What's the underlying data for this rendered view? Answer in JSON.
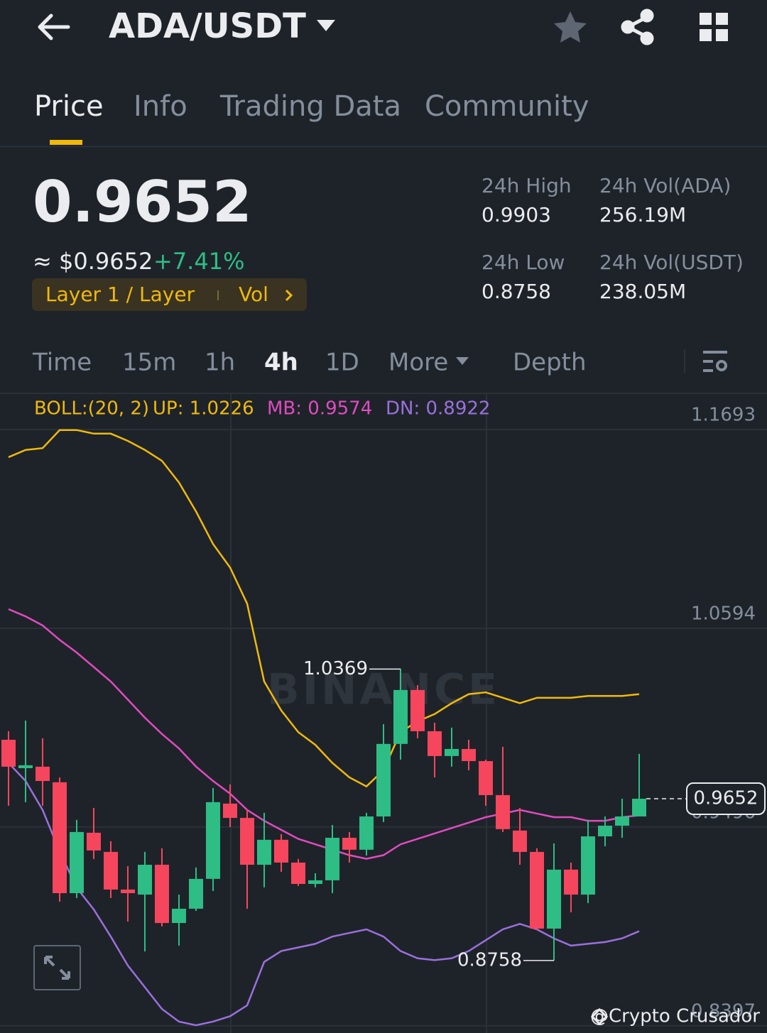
{
  "header": {
    "pair": "ADA/USDT"
  },
  "tabs": [
    "Price",
    "Info",
    "Trading Data",
    "Community"
  ],
  "ticker": {
    "price": "0.9652",
    "fiat": "≈ $0.9652",
    "change": "+7.41%",
    "tag": "Layer 1 / Layer",
    "tag_link": "Vol"
  },
  "stats": [
    {
      "label": "24h High",
      "value": "0.9903"
    },
    {
      "label": "24h Vol(ADA)",
      "value": "256.19M"
    },
    {
      "label": "24h Low",
      "value": "0.8758"
    },
    {
      "label": "24h Vol(USDT)",
      "value": "238.05M"
    }
  ],
  "intervals": [
    "Time",
    "15m",
    "1h",
    "4h",
    "1D",
    "More",
    "Depth"
  ],
  "chart_data": {
    "type": "candlestick",
    "indicator": {
      "title": "BOLL:(20, 2)",
      "items": [
        "UP: 1.0226",
        "MB: 0.9574",
        "DN: 0.8922"
      ]
    },
    "watermark": "BINANCE",
    "up_color": "#2ebd85",
    "down_color": "#f6465d",
    "open": [
      0.9978,
      0.9821,
      0.9829,
      0.9743,
      0.913,
      0.9464,
      0.9358,
      0.915,
      0.9122,
      0.9287,
      0.8965,
      0.9044,
      0.9209,
      0.9625,
      0.9546,
      0.9287,
      0.9425,
      0.9299,
      0.9181,
      0.9201,
      0.9436,
      0.937,
      0.9554,
      0.9955,
      1.0253,
      1.0025,
      0.9888,
      0.9927,
      0.986,
      0.9672,
      0.9476,
      0.9358,
      0.8934,
      0.926,
      0.9122,
      0.9444,
      0.9503,
      0.9554
    ],
    "high": [
      1.0025,
      1.0084,
      0.9986,
      0.977,
      0.9535,
      0.9601,
      0.9417,
      0.9279,
      0.9358,
      0.9378,
      0.9122,
      0.9272,
      0.9711,
      0.9731,
      0.9593,
      0.9574,
      0.9456,
      0.9319,
      0.924,
      0.9507,
      0.9468,
      0.9574,
      1.0064,
      1.0369,
      1.028,
      1.0072,
      1.0045,
      0.9978,
      0.9868,
      0.9939,
      0.9601,
      0.9378,
      0.9405,
      0.9299,
      0.9535,
      0.9554,
      0.9652,
      0.99
    ],
    "low": [
      0.9613,
      0.9633,
      0.9613,
      0.9083,
      0.9103,
      0.9319,
      0.9103,
      0.8973,
      0.8808,
      0.8946,
      0.884,
      0.9032,
      0.9142,
      0.9495,
      0.9044,
      0.9162,
      0.9248,
      0.917,
      0.9162,
      0.913,
      0.9299,
      0.9338,
      0.9523,
      0.9868,
      0.9986,
      0.977,
      0.9829,
      0.9809,
      0.9613,
      0.9468,
      0.9287,
      0.8926,
      0.8758,
      0.9024,
      0.9075,
      0.9389,
      0.9436,
      0.9554
    ],
    "close": [
      0.9829,
      0.9837,
      0.975,
      0.913,
      0.9468,
      0.9366,
      0.915,
      0.913,
      0.9287,
      0.8965,
      0.9044,
      0.9209,
      0.9633,
      0.9546,
      0.9287,
      0.9425,
      0.9299,
      0.9181,
      0.9201,
      0.9436,
      0.937,
      0.9554,
      0.9955,
      1.0253,
      1.0025,
      0.9888,
      0.9927,
      0.986,
      0.9672,
      0.9484,
      0.9358,
      0.8934,
      0.926,
      0.9122,
      0.9444,
      0.9503,
      0.9554,
      0.9652
    ],
    "series": [
      {
        "color": "#f0b90b",
        "values": [
          1.154,
          1.158,
          1.159,
          1.169,
          1.169,
          1.167,
          1.167,
          1.163,
          1.158,
          1.152,
          1.14,
          1.124,
          1.106,
          1.093,
          1.073,
          1.03,
          1.014,
          1.002,
          0.995,
          0.985,
          0.977,
          0.972,
          0.981,
          1.002,
          1.008,
          1.012,
          1.018,
          1.023,
          1.024,
          1.021,
          1.018,
          1.021,
          1.021,
          1.021,
          1.022,
          1.022,
          1.022,
          1.023
        ]
      },
      {
        "color": "#e04bc0",
        "values": [
          1.07,
          1.066,
          1.061,
          1.053,
          1.046,
          1.038,
          1.03,
          1.02,
          1.01,
          1.001,
          0.993,
          0.983,
          0.975,
          0.968,
          0.959,
          0.953,
          0.948,
          0.943,
          0.94,
          0.937,
          0.934,
          0.932,
          0.934,
          0.94,
          0.943,
          0.946,
          0.949,
          0.952,
          0.955,
          0.957,
          0.959,
          0.957,
          0.955,
          0.955,
          0.953,
          0.953,
          0.955,
          0.956
        ]
      },
      {
        "color": "#9a70dc",
        "values": [
          0.985,
          0.975,
          0.959,
          0.936,
          0.916,
          0.904,
          0.889,
          0.873,
          0.861,
          0.849,
          0.842,
          0.84,
          0.842,
          0.845,
          0.851,
          0.875,
          0.881,
          0.883,
          0.885,
          0.889,
          0.891,
          0.893,
          0.889,
          0.881,
          0.877,
          0.876,
          0.877,
          0.881,
          0.887,
          0.893,
          0.896,
          0.893,
          0.888,
          0.884,
          0.885,
          0.886,
          0.888,
          0.892
        ]
      }
    ],
    "ylim": [
      0.8357,
      1.1889
    ],
    "yticks": [
      1.1693,
      1.0594,
      0.9496,
      0.8397
    ],
    "grid": true,
    "high_index": 23,
    "low_index": 32
  },
  "credit": "@Crypto Crusador"
}
